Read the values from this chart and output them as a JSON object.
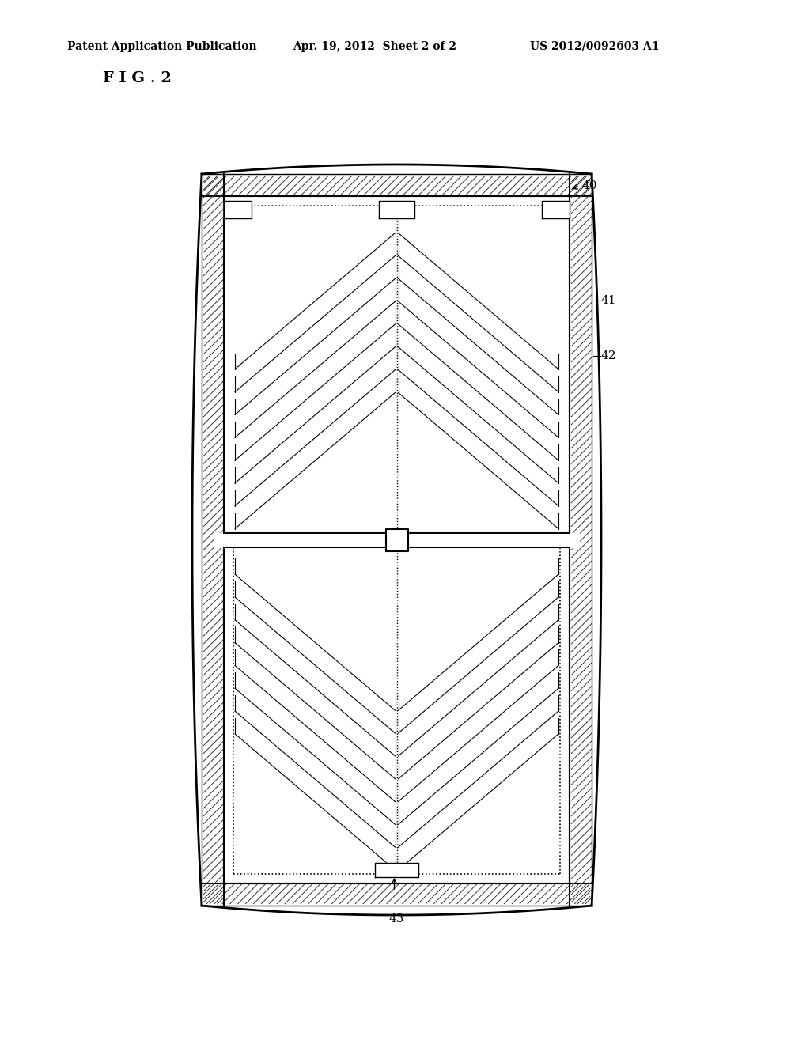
{
  "title_line1": "Patent Application Publication",
  "title_line2": "Apr. 19, 2012  Sheet 2 of 2",
  "title_line3": "US 2012/0092603 A1",
  "fig_label": "F I G . 2",
  "label_40": "40",
  "label_41": "41",
  "label_42": "42",
  "label_43": "43",
  "bg_color": "#ffffff",
  "line_color": "#000000",
  "hatch_color": "#000000"
}
